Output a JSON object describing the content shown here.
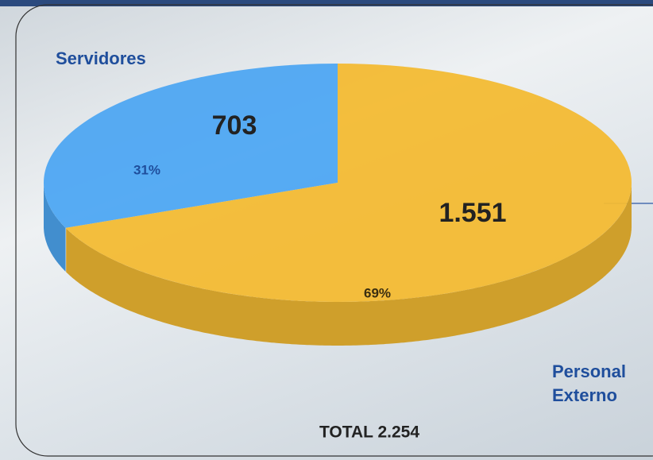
{
  "chart_data": {
    "type": "pie",
    "categories": [
      "Servidores",
      "Personal Externo"
    ],
    "values": [
      703,
      1551
    ],
    "value_labels": [
      "703",
      "1.551"
    ],
    "percent_labels": [
      "31%",
      "69%"
    ],
    "colors": [
      "#4ea7f2",
      "#f3bb33"
    ],
    "total_label": "TOTAL 2.254"
  }
}
